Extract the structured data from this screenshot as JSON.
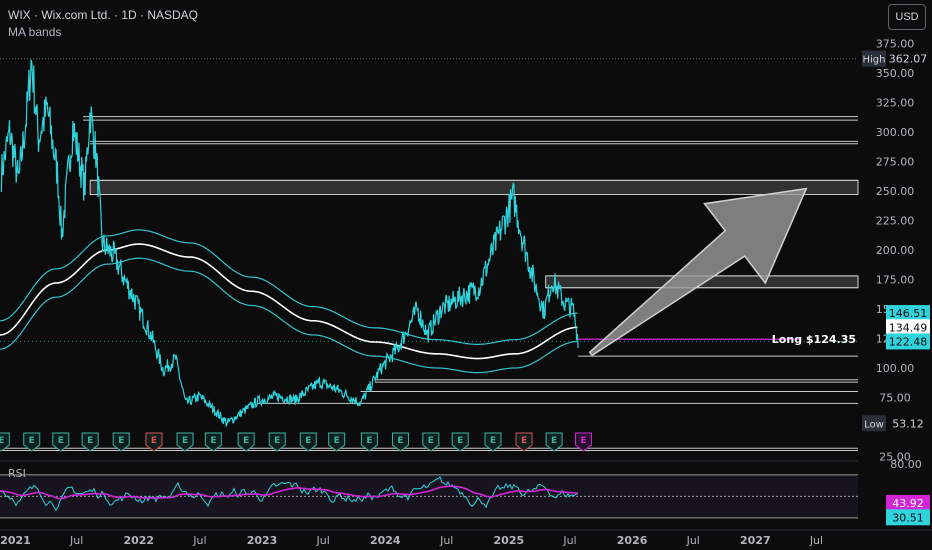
{
  "header": {
    "title": "WIX · Wix.com Ltd. · 1D · NASDAQ",
    "indicator": "MA bands",
    "currency_button": "USD"
  },
  "colors": {
    "background": "#0c0c0d",
    "price_line": "#2ed3dc",
    "ma_center": "#ffffff",
    "ma_band": "#33c3cf",
    "rsi_line": "#2ed3dc",
    "rsi_ma": "#d125d6",
    "long_line": "#d125d6",
    "arrow_fill": "#9b9b9b"
  },
  "chart_data": [
    {
      "type": "line",
      "title": "",
      "x_ticks": [
        "2021",
        "Jul",
        "2022",
        "Jul",
        "2023",
        "Jul",
        "2024",
        "Jul",
        "2025",
        "Jul",
        "2026",
        "Jul",
        "2027",
        "Jul"
      ],
      "y_ticks": [
        375,
        350,
        325,
        300,
        275,
        250,
        225,
        200,
        175,
        150,
        125,
        100,
        75,
        50,
        25
      ],
      "y_tick_labels": [
        "375.00",
        "350.00",
        "325.00",
        "300.00",
        "275.00",
        "250.00",
        "225.00",
        "200.00",
        "175.00",
        "150.00",
        "125.00",
        "100.00",
        "75.00",
        "50.00",
        "25.00"
      ],
      "ylim": [
        22,
        372
      ],
      "x_range": [
        "2020-11-16",
        "2027-11-01"
      ],
      "price_anchors": [
        [
          "2020-11-20",
          265
        ],
        [
          "2020-12-15",
          300
        ],
        [
          "2021-01-10",
          258
        ],
        [
          "2021-02-05",
          320
        ],
        [
          "2021-02-17",
          362.07
        ],
        [
          "2021-03-10",
          295
        ],
        [
          "2021-04-05",
          320
        ],
        [
          "2021-05-05",
          265
        ],
        [
          "2021-05-18",
          212
        ],
        [
          "2021-06-20",
          305
        ],
        [
          "2021-07-25",
          252
        ],
        [
          "2021-08-10",
          318
        ],
        [
          "2021-08-28",
          280
        ],
        [
          "2021-09-15",
          205
        ],
        [
          "2021-10-20",
          195
        ],
        [
          "2021-11-20",
          175
        ],
        [
          "2021-12-20",
          158
        ],
        [
          "2022-02-10",
          125
        ],
        [
          "2022-03-15",
          98
        ],
        [
          "2022-04-20",
          108
        ],
        [
          "2022-05-20",
          70
        ],
        [
          "2022-07-01",
          76
        ],
        [
          "2022-08-10",
          65
        ],
        [
          "2022-09-20",
          53.12
        ],
        [
          "2022-11-10",
          64
        ],
        [
          "2022-12-20",
          72
        ],
        [
          "2023-02-15",
          76
        ],
        [
          "2023-04-10",
          73
        ],
        [
          "2023-06-20",
          88
        ],
        [
          "2023-08-10",
          82
        ],
        [
          "2023-10-20",
          70
        ],
        [
          "2023-12-20",
          100
        ],
        [
          "2024-02-10",
          118
        ],
        [
          "2024-04-05",
          150
        ],
        [
          "2024-05-05",
          128
        ],
        [
          "2024-06-15",
          150
        ],
        [
          "2024-08-10",
          160
        ],
        [
          "2024-10-05",
          168
        ],
        [
          "2024-11-15",
          200
        ],
        [
          "2025-01-15",
          245
        ],
        [
          "2025-02-10",
          210
        ],
        [
          "2025-03-20",
          170
        ],
        [
          "2025-04-15",
          148
        ],
        [
          "2025-05-10",
          175
        ],
        [
          "2025-06-15",
          155
        ],
        [
          "2025-07-10",
          150
        ],
        [
          "2025-07-25",
          124.35
        ]
      ],
      "ma_center_anchors": [
        [
          "2020-11-16",
          128
        ],
        [
          "2021-05-01",
          172
        ],
        [
          "2021-10-01",
          200
        ],
        [
          "2022-01-01",
          205
        ],
        [
          "2022-06-01",
          194
        ],
        [
          "2022-12-01",
          165
        ],
        [
          "2023-06-01",
          140
        ],
        [
          "2023-12-01",
          122
        ],
        [
          "2024-06-01",
          112
        ],
        [
          "2024-10-01",
          108
        ],
        [
          "2025-01-20",
          112
        ],
        [
          "2025-07-25",
          134.49
        ]
      ],
      "band_offset_upper": 12,
      "band_offset_lower": 12,
      "horizontal_levels": [
        {
          "y": 313,
          "x_start": "2021-07-20"
        },
        {
          "y": 310,
          "x_start": "2021-07-20"
        },
        {
          "y": 292,
          "x_start": "2021-08-10"
        },
        {
          "y": 290,
          "x_start": "2021-08-10"
        },
        {
          "y": 259,
          "x_start": "2021-08-10"
        },
        {
          "y": 247,
          "x_start": "2021-08-10"
        },
        {
          "y": 178,
          "x_start": "2025-04-20"
        },
        {
          "y": 168,
          "x_start": "2025-04-20"
        },
        {
          "y": 110,
          "x_start": "2025-07-25"
        },
        {
          "y": 90,
          "x_start": "2023-12-01"
        },
        {
          "y": 88,
          "x_start": "2023-12-01"
        },
        {
          "y": 80,
          "x_start": "2023-10-20"
        },
        {
          "y": 70,
          "x_start": "2022-12-20"
        },
        {
          "y": 32,
          "x_start": "2020-11-16"
        },
        {
          "y": 30,
          "x_start": "2020-11-16"
        }
      ],
      "zones": [
        {
          "y_top": 259,
          "y_bottom": 247,
          "x_start": "2021-08-10"
        },
        {
          "y_top": 178,
          "y_bottom": 168,
          "x_start": "2025-04-20"
        }
      ],
      "earnings_markers": [
        "2020-11-20",
        "2021-02-18",
        "2021-05-15",
        "2021-08-10",
        "2021-11-10",
        "2022-02-15",
        "2022-05-18",
        "2022-08-10",
        "2022-11-15",
        "2023-02-15",
        "2023-05-18",
        "2023-08-10",
        "2023-11-15",
        "2024-02-15",
        "2024-05-15",
        "2024-08-10",
        "2024-11-15",
        "2025-02-15",
        "2025-05-15",
        "2025-08-10"
      ],
      "earnings_marker_label": "E",
      "highlighted_markers": [
        "2022-02-15",
        "2025-02-15"
      ],
      "upcoming_marker": "2025-08-10",
      "arrow_annotation": {
        "from": [
          "2025-09-01",
          112
        ],
        "to": [
          "2027-06-01",
          252
        ]
      },
      "annotations": [
        {
          "label": "Long $124.35",
          "y": 124.35,
          "x_start": "2025-07-25"
        }
      ],
      "price_labels": {
        "high_label": "High",
        "high_value": "362.07",
        "low_label": "Low",
        "low_value": "53.12",
        "last_upper": "146.51",
        "last_center": "134.49",
        "last_lower": "122.48"
      }
    },
    {
      "type": "line",
      "title": "RSI",
      "y_ticks": [
        80
      ],
      "y_tick_labels": [
        "80.00"
      ],
      "ylim": [
        28,
        82
      ],
      "levels": [
        70,
        50,
        30
      ],
      "rsi_value": "43.92",
      "rsi_low_value": "30.51",
      "series": [
        {
          "name": "RSI"
        },
        {
          "name": "RSI MA"
        }
      ]
    }
  ]
}
